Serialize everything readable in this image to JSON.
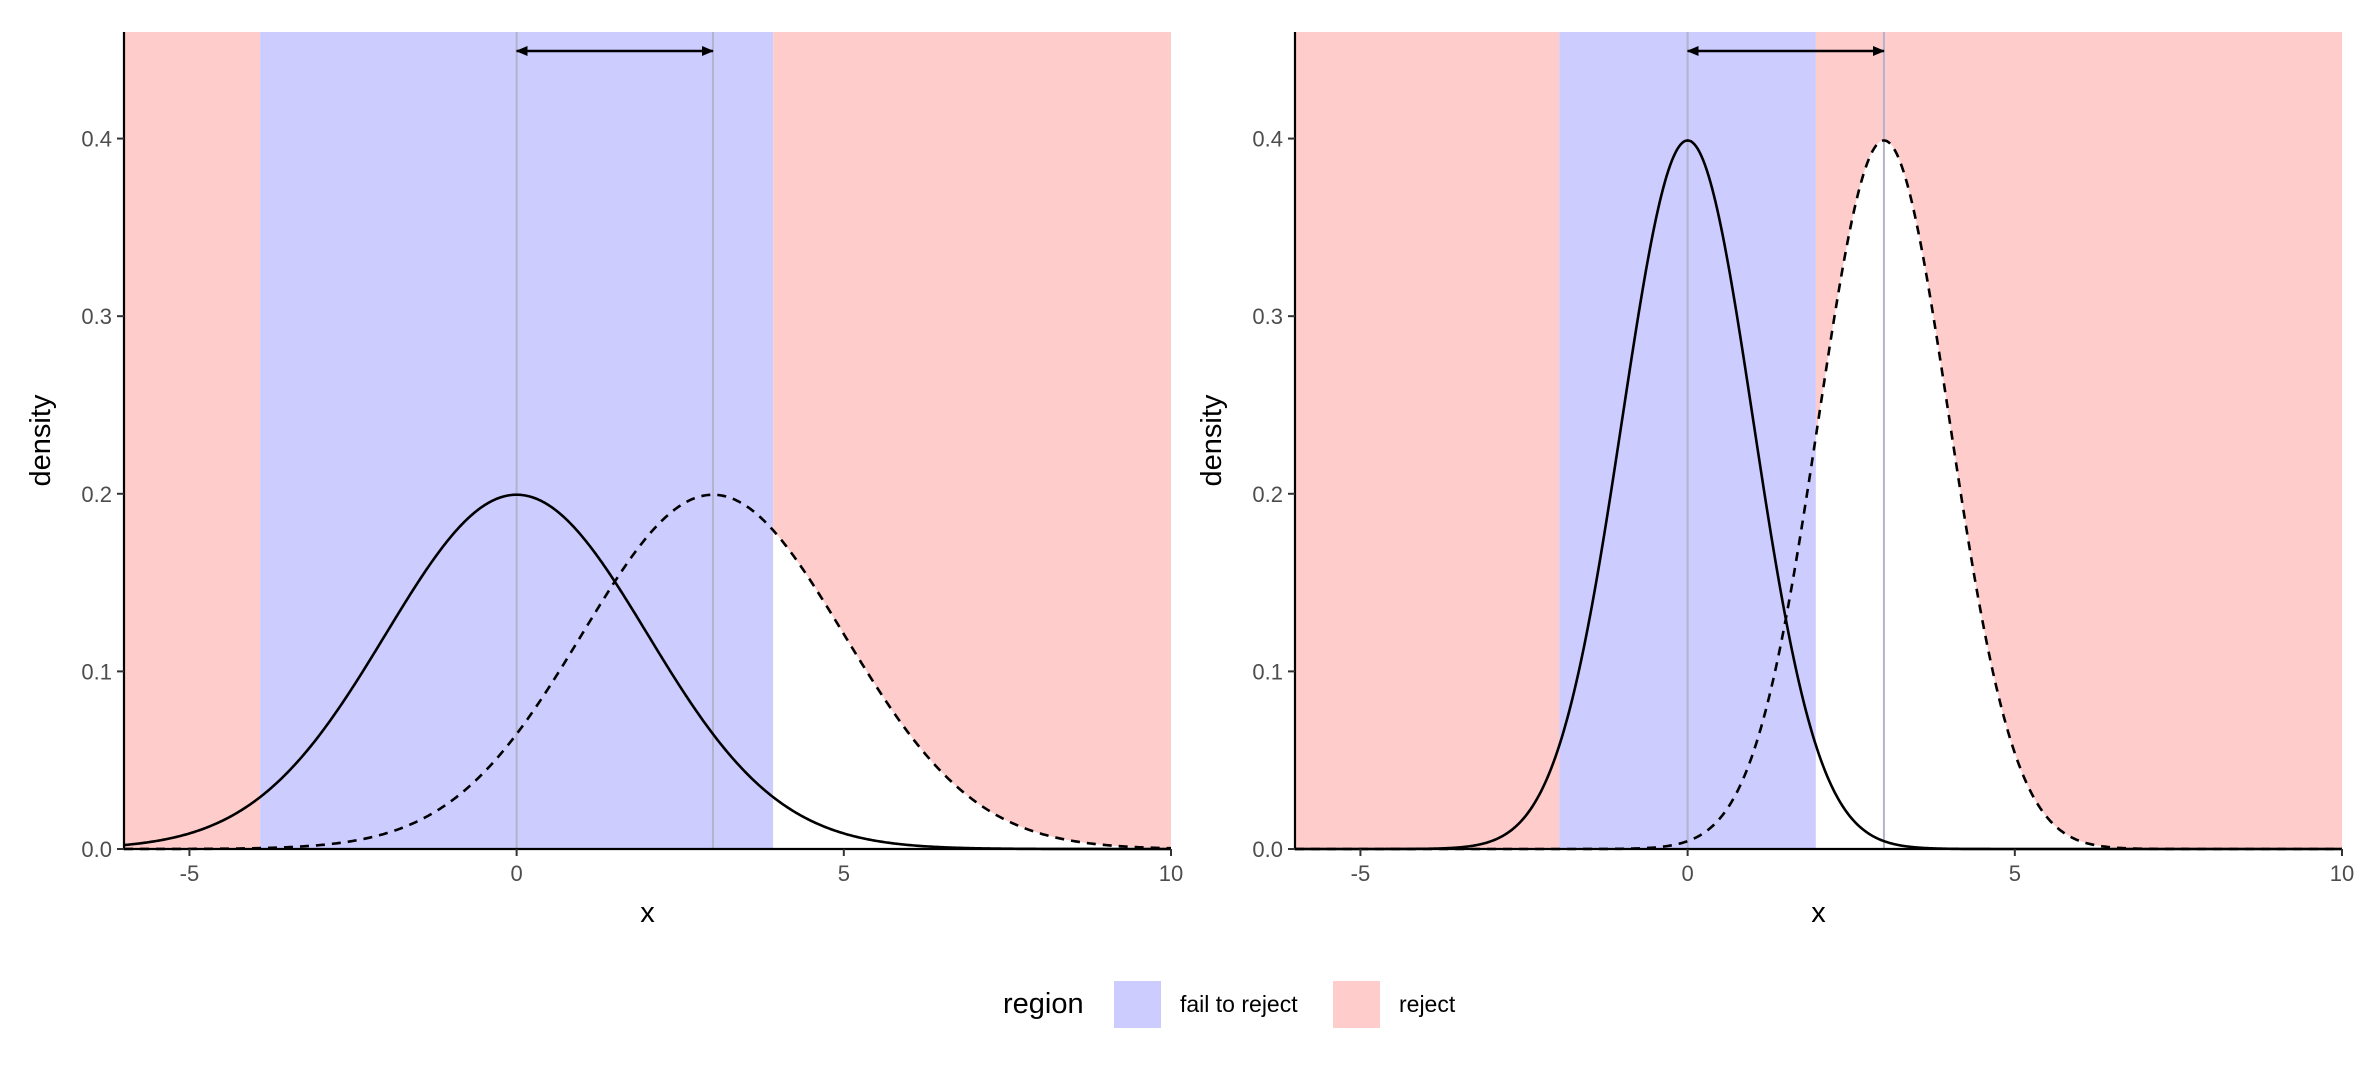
{
  "colors": {
    "fail_to_reject": "#ccccff",
    "reject": "#ffcccc",
    "curve": "#000000",
    "guide": "#b3b3cc"
  },
  "legend": {
    "title": "region",
    "items": [
      {
        "label": "fail to reject",
        "color": "#ccccff"
      },
      {
        "label": "reject",
        "color": "#ffcccc"
      }
    ]
  },
  "chart_data": [
    {
      "type": "area",
      "xlabel": "x",
      "ylabel": "density",
      "xlim": [
        -6,
        10
      ],
      "ylim": [
        0,
        0.46
      ],
      "xticks": [
        -5,
        0,
        5,
        10
      ],
      "yticks": [
        0.0,
        0.1,
        0.2,
        0.3,
        0.4
      ],
      "xtick_labels": [
        "-5",
        "0",
        "5",
        "10"
      ],
      "ytick_labels": [
        "0.0",
        "0.1",
        "0.2",
        "0.3",
        "0.4"
      ],
      "grid": false,
      "regions": [
        {
          "region": "reject",
          "x": [
            -6,
            -3.92
          ]
        },
        {
          "region": "fail to reject",
          "x": [
            -3.92,
            3.92
          ]
        },
        {
          "region": "reject",
          "x": [
            3.92,
            10
          ]
        }
      ],
      "series": [
        {
          "line": "solid",
          "distribution": "normal",
          "mean": 0,
          "sd": 2
        },
        {
          "line": "dashed",
          "distribution": "normal",
          "mean": 3,
          "sd": 2
        }
      ],
      "vlines": [
        0,
        3
      ],
      "arrow": [
        0,
        3
      ]
    },
    {
      "type": "area",
      "xlabel": "x",
      "ylabel": "density",
      "xlim": [
        -6,
        10
      ],
      "ylim": [
        0,
        0.46
      ],
      "xticks": [
        -5,
        0,
        5,
        10
      ],
      "yticks": [
        0.0,
        0.1,
        0.2,
        0.3,
        0.4
      ],
      "xtick_labels": [
        "-5",
        "0",
        "5",
        "10"
      ],
      "ytick_labels": [
        "0.0",
        "0.1",
        "0.2",
        "0.3",
        "0.4"
      ],
      "grid": false,
      "regions": [
        {
          "region": "reject",
          "x": [
            -6,
            -1.96
          ]
        },
        {
          "region": "fail to reject",
          "x": [
            -1.96,
            1.96
          ]
        },
        {
          "region": "reject",
          "x": [
            1.96,
            10
          ]
        }
      ],
      "series": [
        {
          "line": "solid",
          "distribution": "normal",
          "mean": 0,
          "sd": 1
        },
        {
          "line": "dashed",
          "distribution": "normal",
          "mean": 3,
          "sd": 1
        }
      ],
      "vlines": [
        0,
        3
      ],
      "arrow": [
        0,
        3
      ]
    }
  ]
}
